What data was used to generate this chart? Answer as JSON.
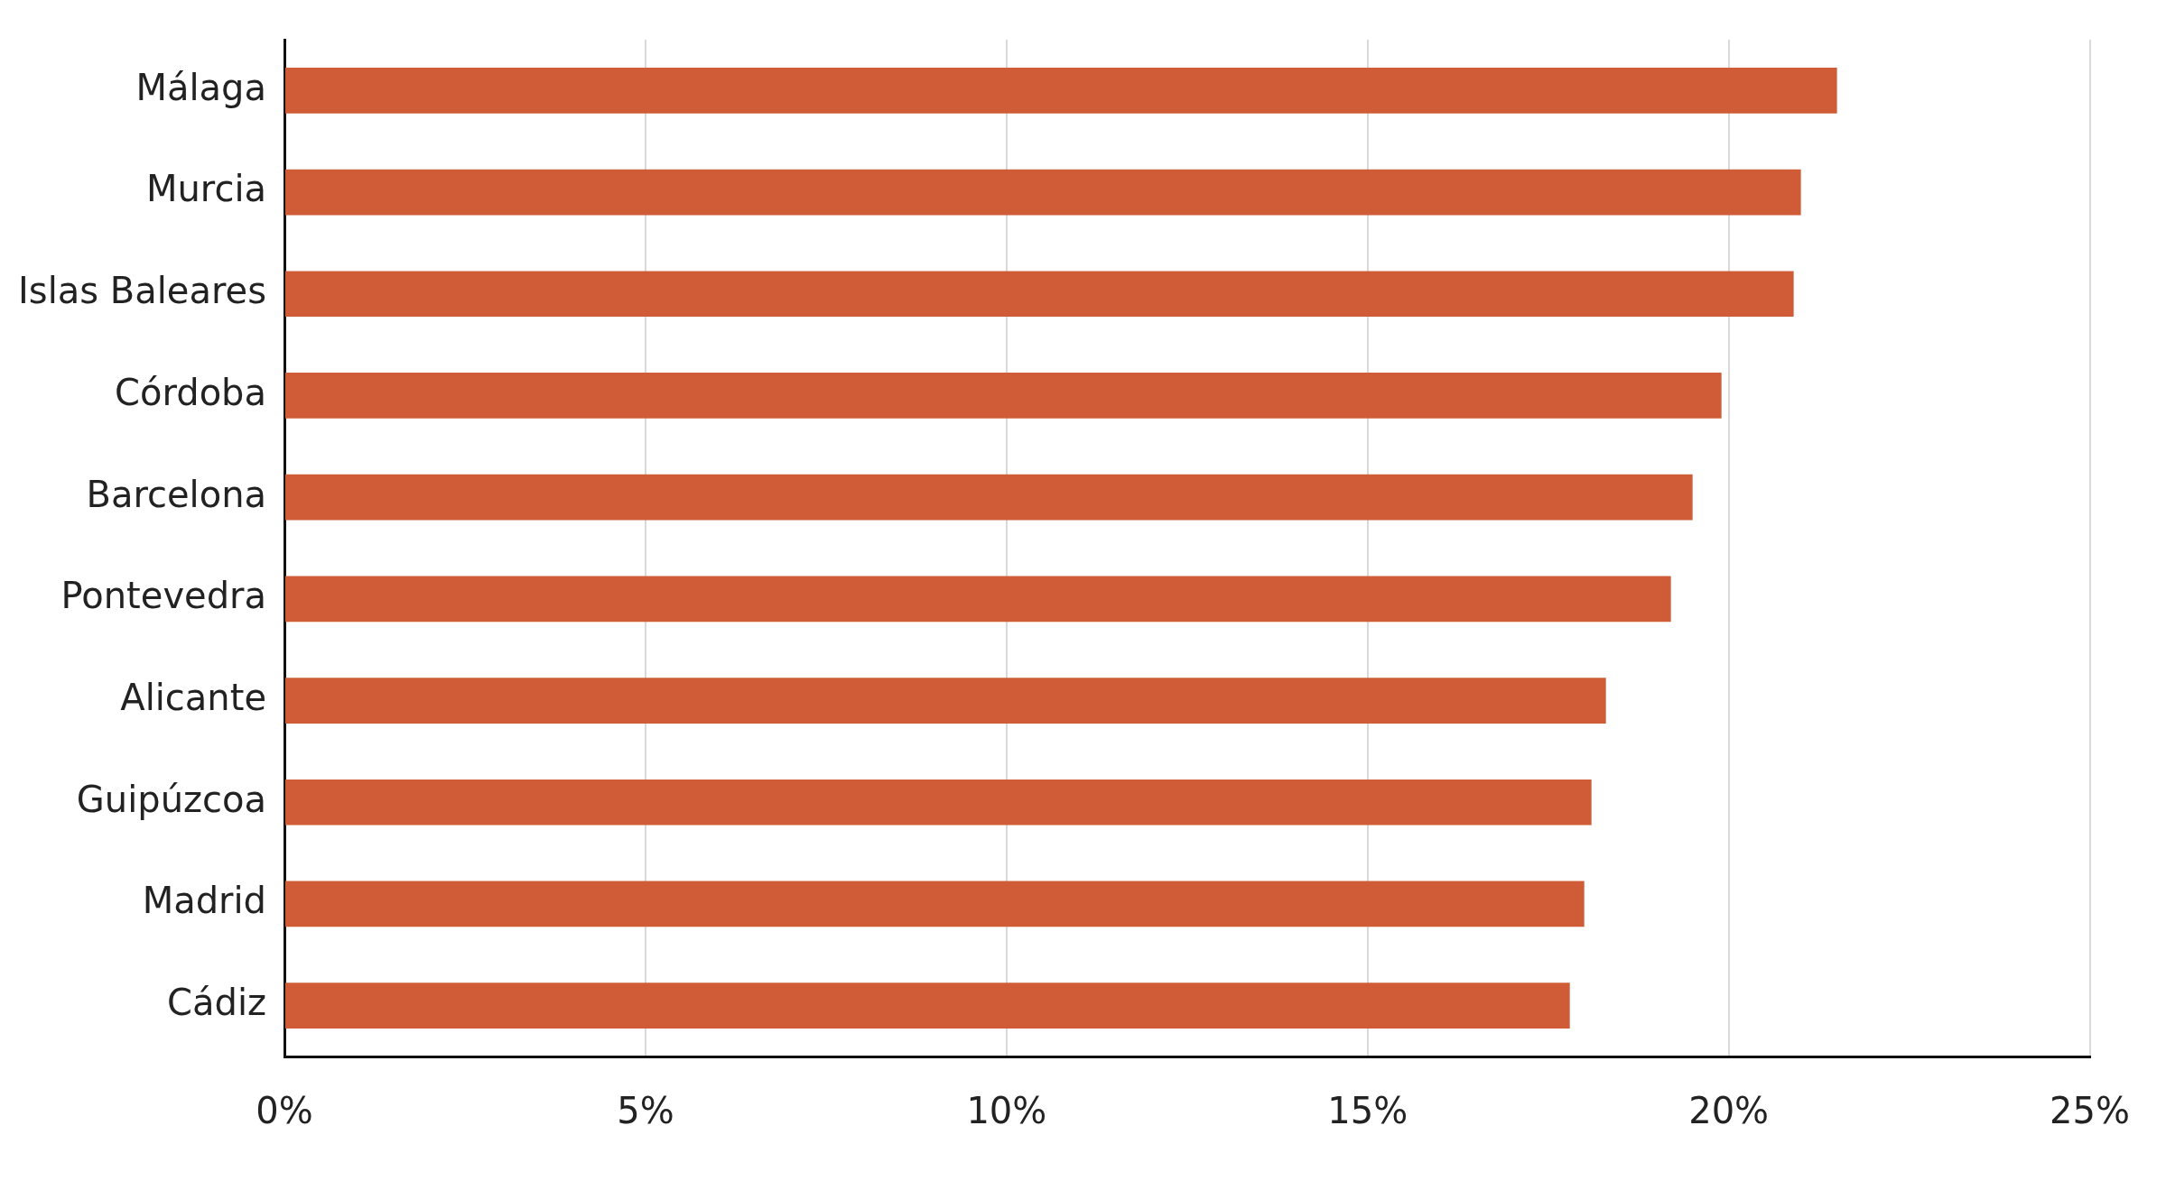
{
  "chart_data": {
    "type": "bar",
    "orientation": "horizontal",
    "categories": [
      "Málaga",
      "Murcia",
      "Islas Baleares",
      "Córdoba",
      "Barcelona",
      "Pontevedra",
      "Alicante",
      "Guipúzcoa",
      "Madrid",
      "Cádiz"
    ],
    "values": [
      21.5,
      21.0,
      20.9,
      19.9,
      19.5,
      19.2,
      18.3,
      18.1,
      18.0,
      17.8
    ],
    "color": "#cf5c36",
    "xlim": [
      0,
      25
    ],
    "xticks": [
      {
        "value": 0,
        "label": "0%"
      },
      {
        "value": 5,
        "label": "5%"
      },
      {
        "value": 10,
        "label": "10%"
      },
      {
        "value": 15,
        "label": "15%"
      },
      {
        "value": 20,
        "label": "20%"
      },
      {
        "value": 25,
        "label": "25%"
      }
    ],
    "grid": "x",
    "legend": false
  }
}
